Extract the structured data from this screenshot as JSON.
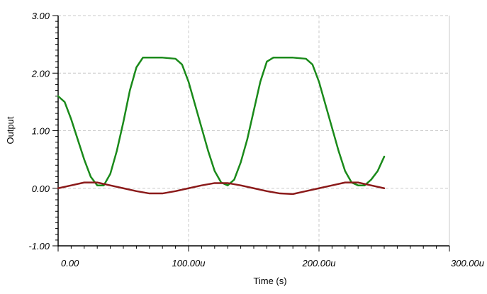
{
  "chart_data": {
    "type": "line",
    "title": "",
    "xlabel": "Time (s)",
    "ylabel": "Output",
    "xlim": [
      0,
      0.0003
    ],
    "ylim": [
      -1,
      3
    ],
    "grid": true,
    "legend": "none",
    "x_ticks": [
      {
        "value": 0,
        "label": "0.00"
      },
      {
        "value": 0.0001,
        "label": "100.00u"
      },
      {
        "value": 0.0002,
        "label": "200.00u"
      },
      {
        "value": 0.0003,
        "label": "300.00u"
      }
    ],
    "y_ticks": [
      {
        "value": -1,
        "label": "-1.00"
      },
      {
        "value": 0,
        "label": "0.00"
      },
      {
        "value": 1,
        "label": "1.00"
      },
      {
        "value": 2,
        "label": "2.00"
      },
      {
        "value": 3,
        "label": "3.00"
      }
    ],
    "series": [
      {
        "color": "#1a8a1a",
        "x": [
          0,
          5e-06,
          1e-05,
          1.5e-05,
          2e-05,
          2.5e-05,
          3e-05,
          3.5e-05,
          4e-05,
          4.5e-05,
          5e-05,
          5.5e-05,
          6e-05,
          6.5e-05,
          7e-05,
          8e-05,
          9e-05,
          9.5e-05,
          0.0001,
          0.000105,
          0.00011,
          0.000115,
          0.00012,
          0.000125,
          0.00013,
          0.000135,
          0.00014,
          0.000145,
          0.00015,
          0.000155,
          0.00016,
          0.000165,
          0.00017,
          0.00018,
          0.00019,
          0.000195,
          0.0002,
          0.000205,
          0.00021,
          0.000215,
          0.00022,
          0.000225,
          0.00023,
          0.000235,
          0.00024,
          0.000245,
          0.00025
        ],
        "y": [
          1.6,
          1.5,
          1.2,
          0.85,
          0.5,
          0.2,
          0.05,
          0.05,
          0.25,
          0.65,
          1.15,
          1.7,
          2.1,
          2.27,
          2.27,
          2.27,
          2.25,
          2.15,
          1.85,
          1.45,
          1.05,
          0.65,
          0.3,
          0.1,
          0.05,
          0.15,
          0.45,
          0.85,
          1.35,
          1.85,
          2.2,
          2.27,
          2.27,
          2.27,
          2.25,
          2.15,
          1.85,
          1.45,
          1.05,
          0.65,
          0.3,
          0.1,
          0.05,
          0.05,
          0.15,
          0.3,
          0.55
        ]
      },
      {
        "color": "#8b1a1a",
        "x": [
          0,
          1e-05,
          2e-05,
          3e-05,
          4e-05,
          5e-05,
          6e-05,
          7e-05,
          8e-05,
          9e-05,
          0.0001,
          0.00011,
          0.00012,
          0.00013,
          0.00014,
          0.00015,
          0.00016,
          0.00017,
          0.00018,
          0.00019,
          0.0002,
          0.00021,
          0.00022,
          0.00023,
          0.00024,
          0.00025
        ],
        "y": [
          0.0,
          0.05,
          0.1,
          0.1,
          0.05,
          0.0,
          -0.05,
          -0.09,
          -0.09,
          -0.05,
          0.0,
          0.05,
          0.09,
          0.09,
          0.05,
          0.0,
          -0.05,
          -0.09,
          -0.1,
          -0.05,
          0.0,
          0.05,
          0.1,
          0.1,
          0.05,
          0.0
        ]
      }
    ]
  }
}
